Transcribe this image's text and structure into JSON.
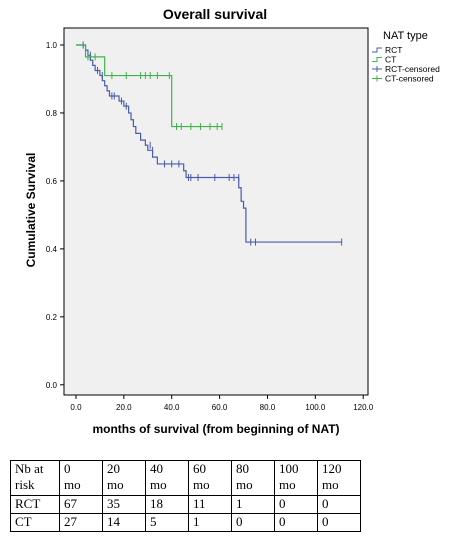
{
  "chart_data": {
    "type": "line",
    "title": "Overall survival",
    "xlabel": "months of survival (from beginning of NAT)",
    "ylabel": "Cumulative Survival",
    "xlim": [
      -5,
      122
    ],
    "ylim": [
      -0.03,
      1.05
    ],
    "xticks": [
      "0.0",
      "20.0",
      "40.0",
      "60.0",
      "80.0",
      "100.0",
      "120.0"
    ],
    "yticks": [
      "0.0",
      "0.2",
      "0.4",
      "0.6",
      "0.8",
      "1.0"
    ],
    "legend_title": "NAT type",
    "legend_position": "right",
    "series": [
      {
        "name": "RCT",
        "color": "#4a5cab",
        "steps": [
          [
            0,
            1.0
          ],
          [
            4,
            0.985
          ],
          [
            5,
            0.97
          ],
          [
            6,
            0.955
          ],
          [
            7,
            0.94
          ],
          [
            8,
            0.925
          ],
          [
            10,
            0.91
          ],
          [
            11,
            0.895
          ],
          [
            12,
            0.88
          ],
          [
            13,
            0.865
          ],
          [
            14,
            0.85
          ],
          [
            18,
            0.835
          ],
          [
            20,
            0.82
          ],
          [
            22,
            0.8
          ],
          [
            23,
            0.78
          ],
          [
            24,
            0.76
          ],
          [
            25,
            0.74
          ],
          [
            27,
            0.72
          ],
          [
            29,
            0.705
          ],
          [
            30,
            0.69
          ],
          [
            32,
            0.67
          ],
          [
            34,
            0.65
          ],
          [
            45,
            0.63
          ],
          [
            46,
            0.61
          ],
          [
            68,
            0.58
          ],
          [
            69,
            0.54
          ],
          [
            70,
            0.52
          ],
          [
            71,
            0.42
          ],
          [
            111,
            0.42
          ]
        ],
        "censored": [
          [
            3,
            1.0
          ],
          [
            6,
            0.97
          ],
          [
            9,
            0.925
          ],
          [
            11,
            0.91
          ],
          [
            15,
            0.85
          ],
          [
            16,
            0.85
          ],
          [
            19,
            0.835
          ],
          [
            21,
            0.82
          ],
          [
            31,
            0.705
          ],
          [
            32,
            0.69
          ],
          [
            37,
            0.65
          ],
          [
            40,
            0.65
          ],
          [
            43,
            0.65
          ],
          [
            47,
            0.61
          ],
          [
            48,
            0.61
          ],
          [
            51,
            0.61
          ],
          [
            58,
            0.61
          ],
          [
            64,
            0.61
          ],
          [
            66,
            0.61
          ],
          [
            68,
            0.61
          ],
          [
            73,
            0.42
          ],
          [
            75,
            0.42
          ],
          [
            111,
            0.42
          ]
        ]
      },
      {
        "name": "CT",
        "color": "#3fb24a",
        "steps": [
          [
            0,
            1.0
          ],
          [
            4,
            0.965
          ],
          [
            12,
            0.91
          ],
          [
            40,
            0.76
          ],
          [
            61,
            0.76
          ]
        ],
        "censored": [
          [
            5,
            0.965
          ],
          [
            8,
            0.965
          ],
          [
            15,
            0.91
          ],
          [
            21,
            0.91
          ],
          [
            27,
            0.91
          ],
          [
            29,
            0.91
          ],
          [
            31,
            0.91
          ],
          [
            34,
            0.91
          ],
          [
            39,
            0.91
          ],
          [
            42,
            0.76
          ],
          [
            44,
            0.76
          ],
          [
            48,
            0.76
          ],
          [
            52,
            0.76
          ],
          [
            56,
            0.76
          ],
          [
            59,
            0.76
          ],
          [
            61,
            0.76
          ]
        ]
      }
    ],
    "legend_entries": [
      "RCT",
      "CT",
      "RCT-censored",
      "CT-censored"
    ]
  },
  "risk_table": {
    "header_label_line1": "Nb at",
    "header_label_line2": "risk",
    "times": [
      {
        "value": "0",
        "unit": "mo"
      },
      {
        "value": "20",
        "unit": "mo"
      },
      {
        "value": "40",
        "unit": "mo"
      },
      {
        "value": "60",
        "unit": "mo"
      },
      {
        "value": "80",
        "unit": "mo"
      },
      {
        "value": "100",
        "unit": "mo"
      },
      {
        "value": "120",
        "unit": "mo"
      }
    ],
    "rows": [
      {
        "label": "RCT",
        "values": [
          "67",
          "35",
          "18",
          "11",
          "1",
          "0",
          "0"
        ]
      },
      {
        "label": "CT",
        "values": [
          "27",
          "14",
          "5",
          "1",
          "0",
          "0",
          "0"
        ]
      }
    ]
  }
}
